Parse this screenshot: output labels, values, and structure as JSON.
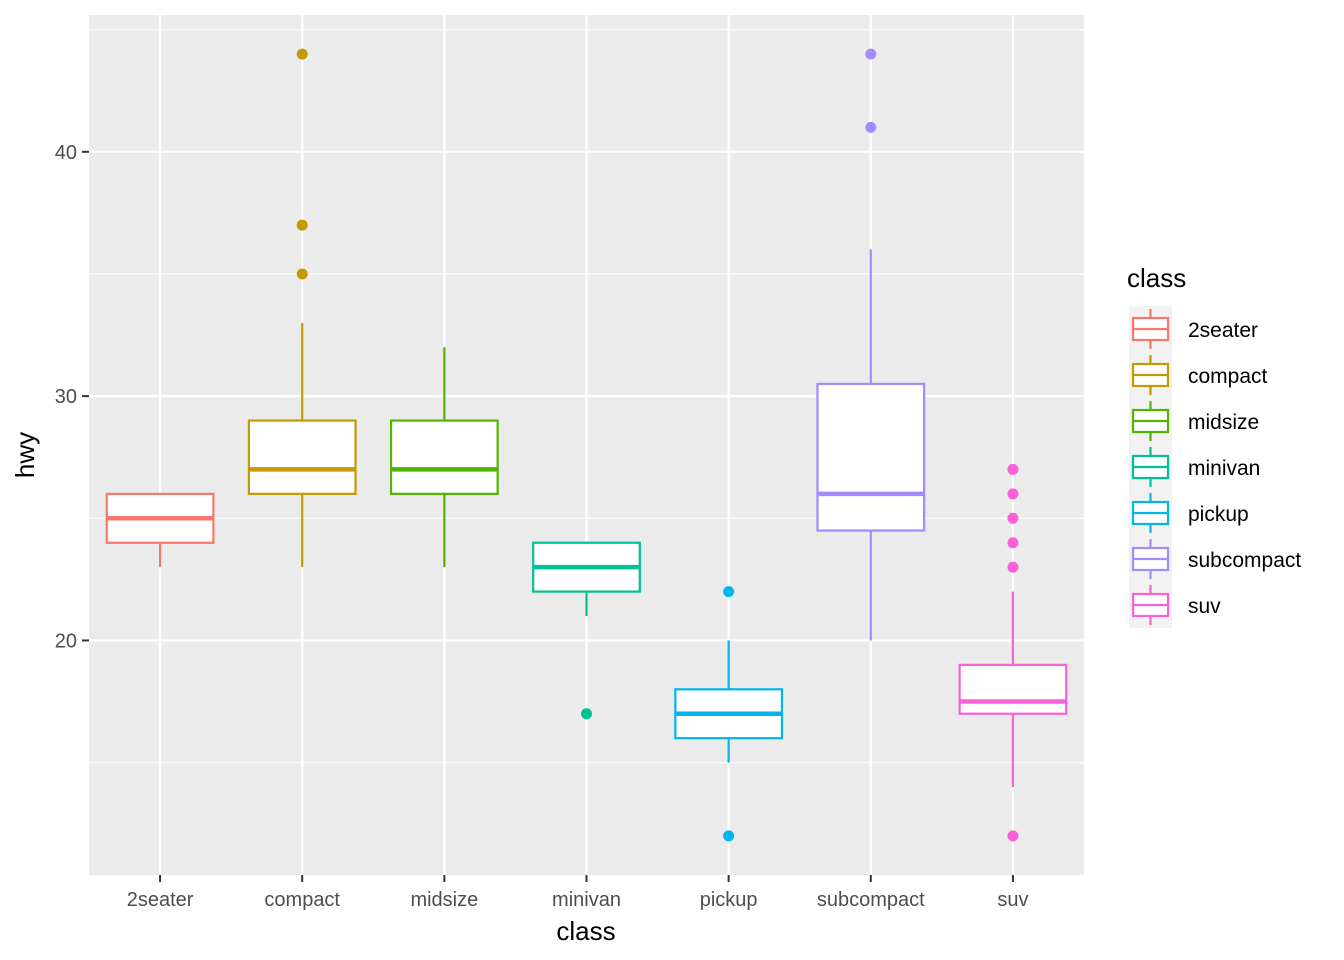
{
  "chart_data": {
    "type": "boxplot",
    "title": "",
    "xlabel": "class",
    "ylabel": "hwy",
    "ylim": [
      10.4,
      45.6
    ],
    "yticks": [
      20,
      30,
      40
    ],
    "grid": true,
    "legend": {
      "title": "class",
      "position": "right"
    },
    "categories": [
      "2seater",
      "compact",
      "midsize",
      "minivan",
      "pickup",
      "subcompact",
      "suv"
    ],
    "colors": [
      "#F8766D",
      "#C49A00",
      "#53B400",
      "#00C094",
      "#00B6EB",
      "#A58AFF",
      "#FB61D7"
    ],
    "boxes": [
      {
        "name": "2seater",
        "lower": 23,
        "q1": 24,
        "median": 25,
        "q3": 26,
        "upper": 26,
        "outliers": []
      },
      {
        "name": "compact",
        "lower": 23,
        "q1": 26,
        "median": 27,
        "q3": 29,
        "upper": 33,
        "outliers": [
          35,
          37,
          44
        ]
      },
      {
        "name": "midsize",
        "lower": 23,
        "q1": 26,
        "median": 27,
        "q3": 29,
        "upper": 32,
        "outliers": []
      },
      {
        "name": "minivan",
        "lower": 21,
        "q1": 22,
        "median": 23,
        "q3": 24,
        "upper": 24,
        "outliers": [
          17
        ]
      },
      {
        "name": "pickup",
        "lower": 15,
        "q1": 16,
        "median": 17,
        "q3": 18,
        "upper": 20,
        "outliers": [
          12,
          22
        ]
      },
      {
        "name": "subcompact",
        "lower": 20,
        "q1": 24.5,
        "median": 26,
        "q3": 30.5,
        "upper": 36,
        "outliers": [
          41,
          44
        ]
      },
      {
        "name": "suv",
        "lower": 14,
        "q1": 17,
        "median": 17.5,
        "q3": 19,
        "upper": 22,
        "outliers": [
          12,
          23,
          24,
          25,
          26,
          27
        ]
      }
    ]
  }
}
